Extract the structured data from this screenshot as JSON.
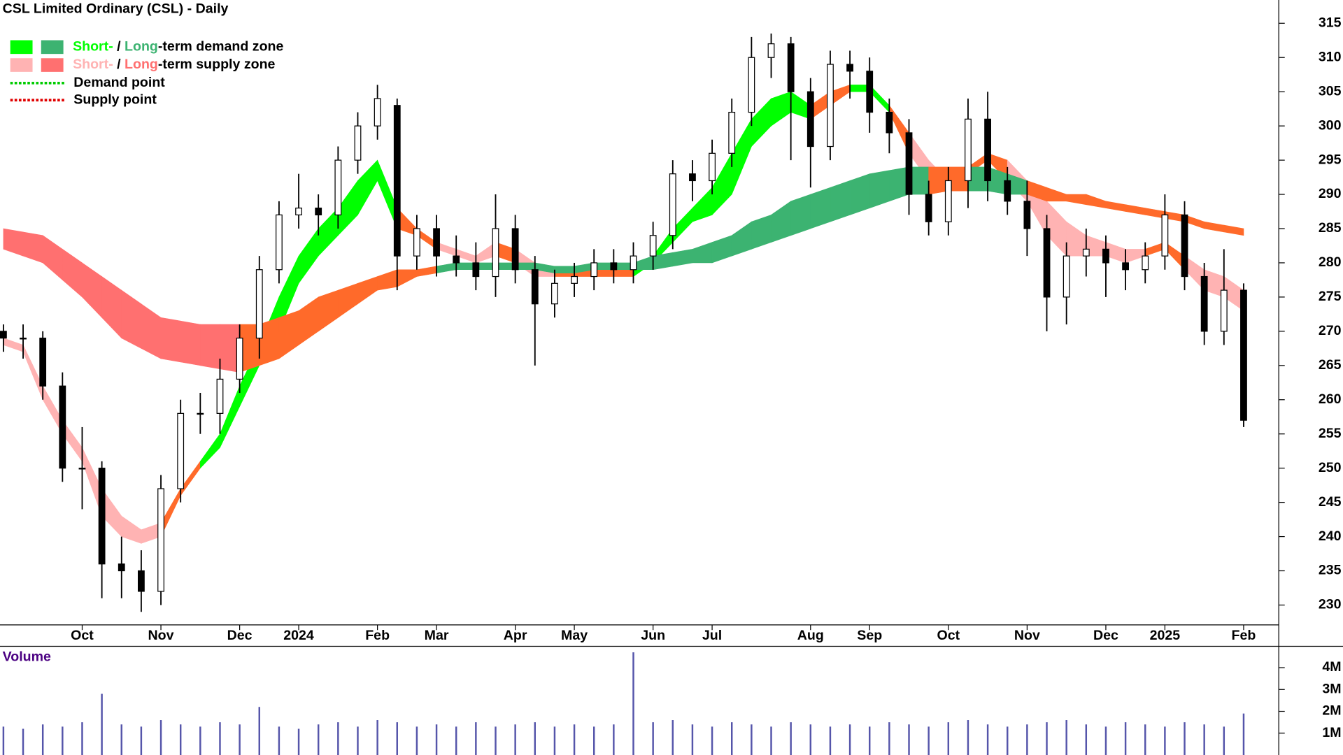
{
  "chart_data": {
    "type": "candlestick",
    "title": "CSL Limited Ordinary (CSL) - Daily",
    "legend": {
      "demand_zone": {
        "short": "Short-",
        "separator": "/",
        "long": "Long",
        "suffix": "-term demand zone",
        "short_color": "#00ff00",
        "long_color": "#3cb371"
      },
      "supply_zone": {
        "short": "Short-",
        "separator": "/",
        "long": "Long",
        "suffix": "-term supply zone",
        "short_color": "#ffb3b3",
        "long_color": "#ff7070"
      },
      "demand_point": {
        "label": "Demand point",
        "color": "#00cc00"
      },
      "supply_point": {
        "label": "Supply point",
        "color": "#e00000"
      }
    },
    "categories": [
      null,
      null,
      null,
      null,
      "Oct",
      null,
      null,
      null,
      "Nov",
      null,
      null,
      null,
      "Dec",
      null,
      null,
      "2024",
      null,
      null,
      null,
      "Feb",
      null,
      null,
      "Mar",
      null,
      null,
      null,
      "Apr",
      null,
      null,
      "May",
      null,
      null,
      null,
      "Jun",
      null,
      null,
      "Jul",
      null,
      null,
      null,
      null,
      "Aug",
      null,
      null,
      "Sep",
      null,
      null,
      null,
      "Oct",
      null,
      null,
      null,
      "Nov",
      null,
      null,
      null,
      "Dec",
      null,
      null,
      "2025",
      null,
      null,
      null,
      "Feb"
    ],
    "open": [
      270,
      269,
      269,
      262,
      250,
      250,
      236,
      235,
      232,
      247,
      258,
      258,
      263,
      269,
      279,
      287,
      288,
      287,
      295,
      300,
      303,
      281,
      285,
      281,
      280,
      278,
      285,
      279,
      274,
      277,
      278,
      280,
      279,
      281,
      284,
      293,
      292,
      296,
      302,
      310,
      312,
      305,
      297,
      309,
      308,
      302,
      299,
      290,
      286,
      292,
      301,
      292,
      289,
      285,
      275,
      281,
      282,
      280,
      279,
      281,
      287,
      278,
      270,
      276
    ],
    "high": [
      271,
      271,
      270,
      264,
      256,
      251,
      240,
      238,
      249,
      260,
      261,
      266,
      271,
      281,
      289,
      293,
      290,
      297,
      302,
      306,
      304,
      287,
      287,
      284,
      283,
      290,
      287,
      281,
      279,
      280,
      282,
      282,
      283,
      286,
      295,
      295,
      298,
      304,
      313,
      313.5,
      313,
      307,
      311,
      311,
      310,
      304,
      301,
      292,
      294,
      304,
      305,
      294,
      292,
      287,
      283,
      285,
      284,
      282,
      283,
      290,
      289,
      280,
      282,
      277
    ],
    "low": [
      267,
      266,
      260,
      248,
      244,
      231,
      231,
      229,
      230,
      245,
      255,
      255,
      261,
      266,
      277,
      285,
      284,
      285,
      293,
      298,
      276,
      279,
      278,
      278,
      276,
      275,
      277,
      265,
      272,
      275,
      276,
      277,
      277,
      279,
      282,
      289,
      290,
      294,
      300,
      307,
      295,
      291,
      295,
      304,
      299,
      296,
      287,
      284,
      284,
      288,
      289,
      287,
      281,
      270,
      271,
      278,
      275,
      276,
      277,
      279,
      276,
      268,
      268,
      256
    ],
    "close": [
      269,
      269,
      262,
      250,
      250,
      236,
      235,
      232,
      247,
      258,
      258,
      263,
      269,
      279,
      287,
      288,
      287,
      295,
      300,
      304,
      281,
      285,
      281,
      280,
      278,
      285,
      279,
      274,
      277,
      278,
      280,
      279,
      281,
      284,
      293,
      292,
      296,
      302,
      310,
      312,
      305,
      297,
      309,
      308,
      302,
      299,
      290,
      286,
      292,
      301,
      292,
      289,
      285,
      275,
      281,
      282,
      280,
      279,
      281,
      287,
      278,
      270,
      276,
      257
    ],
    "zones": [
      {
        "upper": [
          269,
          268,
          262,
          257,
          253,
          247,
          243,
          241,
          242,
          247,
          251,
          255,
          262,
          268,
          275,
          281,
          285,
          288,
          292,
          295,
          288,
          285,
          283,
          282,
          281,
          283,
          282,
          280,
          279,
          279,
          279,
          279,
          279,
          281,
          285,
          288,
          291,
          296,
          301,
          304,
          305,
          303,
          305,
          306,
          306,
          303,
          299,
          295,
          292,
          294,
          296,
          295,
          292,
          289,
          286,
          284,
          283,
          282,
          282,
          283,
          281,
          279,
          278,
          276
        ],
        "lower": [
          268,
          267,
          260,
          255,
          251,
          243,
          240,
          239,
          240,
          246,
          250,
          253,
          259,
          265,
          270,
          277,
          281,
          284,
          287,
          292,
          285,
          284,
          282,
          281,
          280,
          281,
          280,
          278,
          278,
          278,
          278,
          278,
          278,
          280,
          283,
          286,
          287,
          290,
          297,
          300,
          302,
          301,
          303,
          305,
          305,
          302,
          296,
          292,
          291,
          293,
          295,
          292,
          289,
          284,
          281,
          281,
          281,
          280,
          281,
          282,
          279,
          276,
          275,
          273
        ],
        "colors": [
          "#ffb3b3",
          "#ffb3b3",
          "#ffb3b3",
          "#ffb3b3",
          "#ffb3b3",
          "#ffb3b3",
          "#ffb3b3",
          "#ffb3b3",
          "#ff6a2a",
          "#ff6a2a",
          "#00ff00",
          "#00ff00",
          "#00ff00",
          "#00ff00",
          "#00ff00",
          "#00ff00",
          "#00ff00",
          "#00ff00",
          "#00ff00",
          "#00ff00",
          "#ff6a2a",
          "#ff6a2a",
          "#ffb3b3",
          "#ffb3b3",
          "#ffb3b3",
          "#ff6a2a",
          "#ffb3b3",
          "#ffb3b3",
          "#ff6a2a",
          "#ff6a2a",
          "#ff6a2a",
          "#ff6a2a",
          "#00ff00",
          "#00ff00",
          "#00ff00",
          "#00ff00",
          "#00ff00",
          "#00ff00",
          "#00ff00",
          "#00ff00",
          "#00ff00",
          "#ff6a2a",
          "#ff6a2a",
          "#00ff00",
          "#00ff00",
          "#ff6a2a",
          "#ffb3b3",
          "#ffb3b3",
          "#ff6a2a",
          "#ff6a2a",
          "#ff6a2a",
          "#ffb3b3",
          "#ffb3b3",
          "#ffb3b3",
          "#ffb3b3",
          "#ffb3b3",
          "#ffb3b3",
          "#ffb3b3",
          "#ff6a2a",
          "#ff6a2a",
          "#ffb3b3",
          "#ffb3b3",
          "#ffb3b3",
          "#ffb3b3"
        ]
      },
      {
        "upper": [
          285,
          284.5,
          284,
          282,
          280,
          278,
          276,
          274,
          272,
          271.5,
          271,
          271,
          271,
          271,
          272,
          273,
          275,
          276,
          277,
          278,
          279,
          279,
          279.5,
          280,
          280,
          280,
          280,
          280,
          279.5,
          279.5,
          280,
          280,
          280,
          281,
          281.5,
          282,
          283,
          284,
          286,
          287,
          289,
          290,
          291,
          292,
          293,
          293.5,
          294,
          294,
          294,
          294,
          294,
          293,
          292,
          291,
          290,
          290,
          289,
          288.5,
          288,
          287.5,
          287,
          286,
          285.5,
          285
        ],
        "lower": [
          282,
          281,
          280,
          277.5,
          275,
          272,
          269,
          267.5,
          266,
          265.5,
          265,
          264.5,
          264,
          265,
          266,
          268,
          270,
          272,
          274,
          276,
          276.5,
          278,
          278.5,
          279,
          279,
          279,
          279,
          279,
          278.5,
          278.5,
          279,
          279,
          279,
          279,
          279.5,
          280,
          280,
          281,
          282,
          283,
          284,
          285,
          286,
          287,
          288,
          289,
          290,
          290,
          290.5,
          290.5,
          290.5,
          290,
          290,
          289,
          289,
          288.5,
          288,
          287.5,
          287,
          286.5,
          286,
          285,
          284.5,
          284
        ],
        "colors": [
          "#ff7070",
          "#ff7070",
          "#ff7070",
          "#ff7070",
          "#ff7070",
          "#ff7070",
          "#ff7070",
          "#ff7070",
          "#ff7070",
          "#ff7070",
          "#ff7070",
          "#ff7070",
          "#ff6a2a",
          "#ff6a2a",
          "#ff6a2a",
          "#ff6a2a",
          "#ff6a2a",
          "#ff6a2a",
          "#ff6a2a",
          "#ff6a2a",
          "#ff6a2a",
          "#ff6a2a",
          "#3cb371",
          "#3cb371",
          "#3cb371",
          "#3cb371",
          "#3cb371",
          "#3cb371",
          "#3cb371",
          "#3cb371",
          "#3cb371",
          "#3cb371",
          "#3cb371",
          "#3cb371",
          "#3cb371",
          "#3cb371",
          "#3cb371",
          "#3cb371",
          "#3cb371",
          "#3cb371",
          "#3cb371",
          "#3cb371",
          "#3cb371",
          "#3cb371",
          "#3cb371",
          "#3cb371",
          "#3cb371",
          "#ff6a2a",
          "#ff6a2a",
          "#3cb371",
          "#3cb371",
          "#3cb371",
          "#ff6a2a",
          "#ff6a2a",
          "#ff6a2a",
          "#ff6a2a",
          "#ff6a2a",
          "#ff6a2a",
          "#ff6a2a",
          "#ff6a2a",
          "#ff6a2a",
          "#ff6a2a",
          "#ff6a2a",
          "#ff6a2a"
        ]
      }
    ],
    "ylim": [
      227.1,
      318.4
    ],
    "yticks": [
      230,
      235,
      240,
      245,
      250,
      255,
      260,
      265,
      270,
      275,
      280,
      285,
      290,
      295,
      300,
      305,
      310,
      315
    ],
    "volume": {
      "label": "Volume",
      "color": "#5555aa",
      "values": [
        1.3,
        1.2,
        1.4,
        1.3,
        1.5,
        2.8,
        1.4,
        1.3,
        1.6,
        1.4,
        1.3,
        1.5,
        1.4,
        2.2,
        1.3,
        1.2,
        1.4,
        1.5,
        1.3,
        1.6,
        1.5,
        1.3,
        1.4,
        1.3,
        1.5,
        1.3,
        1.4,
        1.5,
        1.3,
        1.4,
        1.3,
        1.4,
        4.7,
        1.5,
        1.6,
        1.4,
        1.3,
        1.5,
        1.4,
        1.3,
        1.5,
        1.4,
        1.3,
        1.4,
        1.3,
        1.5,
        1.4,
        1.3,
        1.5,
        1.6,
        1.4,
        1.3,
        1.4,
        1.5,
        1.6,
        1.4,
        1.3,
        1.5,
        1.4,
        1.3,
        1.5,
        1.4,
        1.3,
        1.9
      ],
      "ylim": [
        0,
        4.9
      ],
      "yticks": [
        {
          "value": 1,
          "label": "1M"
        },
        {
          "value": 2,
          "label": "2M"
        },
        {
          "value": 3,
          "label": "3M"
        },
        {
          "value": 4,
          "label": "4M"
        }
      ]
    }
  }
}
